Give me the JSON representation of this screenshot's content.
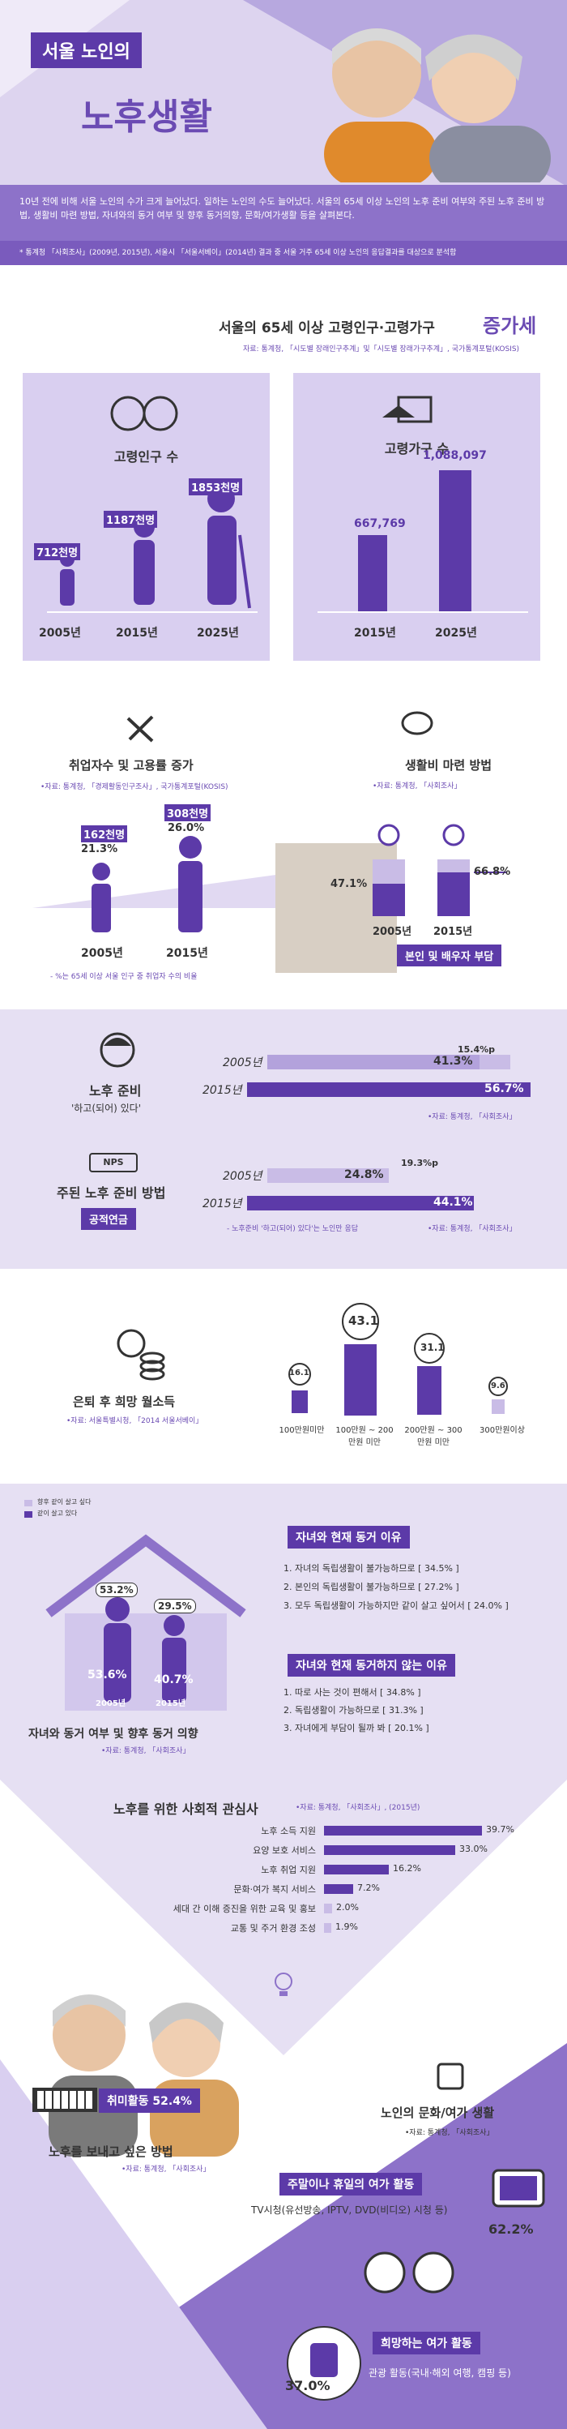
{
  "header": {
    "title_small": "서울 노인의",
    "title_big": "노후생활",
    "intro": "10년 전에 비해 서울 노인의 수가 크게 늘어났다. 일하는 노인의 수도 늘어났다. 서울의 65세 이상 노인의 노후 준비 여부와 주된 노후 준비 방법, 생활비 마련 방법, 자녀와의 동거 여부 및 향후 동거의향, 문화/여가생활 등을 살펴본다.",
    "note": "* 통계청 「사회조사」(2009년, 2015년), 서울시 「서울서베이」(2014년) 결과 중 서울 거주 65세 이상 노인의 응답결과를 대상으로 분석함"
  },
  "section1": {
    "title_main": "서울의 65세 이상 고령인구·고령가구",
    "title_emph": "증가세",
    "source": "자료: 통계청, 「시도별 장래인구추계」및「시도별 장래가구추계」, 국가통계포털(KOSIS)",
    "pop_title": "고령인구 수",
    "pop_values": [
      "712천명",
      "1187천명",
      "1853천명"
    ],
    "pop_years": [
      "2005년",
      "2015년",
      "2025년"
    ],
    "hh_title": "고령가구 수",
    "hh_values": [
      "667,769",
      "1,088,097"
    ],
    "hh_years": [
      "2015년",
      "2025년"
    ]
  },
  "section2": {
    "emp_title": "취업자수 및 고용률 증가",
    "emp_source": "•자료: 통계청, 「경제활동인구조사」, 국가통계포털(KOSIS)",
    "emp_values": [
      "162천명",
      "308천명"
    ],
    "emp_rates": [
      "21.3%",
      "26.0%"
    ],
    "emp_years": [
      "2005년",
      "2015년"
    ],
    "emp_note": "- %는 65세 이상 서울 인구 중 취업자 수의 비율",
    "living_title": "생활비 마련 방법",
    "living_source": "•자료: 통계청, 「사회조사」",
    "living_values": [
      "47.1%",
      "66.8%"
    ],
    "living_years": [
      "2005년",
      "2015년"
    ],
    "living_label": "본인 및 배우자 부담"
  },
  "section3": {
    "prep_title": "노후 준비",
    "prep_sub": "'하고(되어) 있다'",
    "prep_years": [
      "2005년",
      "2015년"
    ],
    "prep_values": [
      "41.3%",
      "56.7%"
    ],
    "prep_diff": "15.4%p",
    "prep_source": "•자료: 통계청, 「사회조사」",
    "method_title": "주된 노후 준비 방법",
    "method_badge": "공적연금",
    "method_logo": "NPS",
    "method_years": [
      "2005년",
      "2015년"
    ],
    "method_values": [
      "24.8%",
      "44.1%"
    ],
    "method_diff": "19.3%p",
    "method_note": "- 노후준비 '하고(되어) 있다'는 노인만 응답",
    "method_source": "•자료: 통계청, 「사회조사」"
  },
  "section4": {
    "title": "은퇴 후 희망 월소득",
    "source": "•자료: 서울특별시청, 「2014 서울서베이」",
    "values": [
      "16.1",
      "43.1",
      "31.1",
      "9.6"
    ],
    "labels": [
      "100만원미만",
      "100만원 ~ 200만원 미만",
      "200만원 ~ 300만원 미만",
      "300만원이상"
    ]
  },
  "section5": {
    "legend_future": "향후 같이 살고 싶다",
    "legend_current": "같이 살고 있다",
    "future_values": [
      "53.2%",
      "29.5%"
    ],
    "current_values": [
      "53.6%",
      "40.7%"
    ],
    "years": [
      "2005년",
      "2015년"
    ],
    "title": "자녀와 동거 여부 및 향후 동거 의향",
    "source": "•자료: 통계청, 「사회조사」",
    "reasons_title": "자녀와 현재 동거 이유",
    "reasons": [
      "1. 자녀의 독립생활이 불가능하므로 [ 34.5% ]",
      "2. 본인의 독립생활이 불가능하므로 [ 27.2% ]",
      "3. 모두 독립생활이 가능하지만 같이 살고 싶어서 [ 24.0% ]"
    ],
    "noreasons_title": "자녀와 현재 동거하지 않는 이유",
    "noreasons": [
      "1. 따로 사는 것이 편해서 [ 34.8% ]",
      "2. 독립생활이 가능하므로 [ 31.3% ]",
      "3. 자녀에게 부담이 될까 봐 [ 20.1% ]"
    ]
  },
  "section6": {
    "title": "노후를 위한 사회적 관심사",
    "source": "•자료: 통계청, 「사회조사」, (2015년)",
    "items": [
      {
        "label": "노후 소득 지원",
        "value": "39.7%",
        "pct": 39.7
      },
      {
        "label": "요양 보호 서비스",
        "value": "33.0%",
        "pct": 33.0
      },
      {
        "label": "노후 취업 지원",
        "value": "16.2%",
        "pct": 16.2
      },
      {
        "label": "문화·여가 복지 서비스",
        "value": "7.2%",
        "pct": 7.2
      },
      {
        "label": "세대 간 이해 증진을 위한 교육 및 홍보",
        "value": "2.0%",
        "pct": 2.0
      },
      {
        "label": "교통 및 주거 환경 조성",
        "value": "1.9%",
        "pct": 1.9
      }
    ]
  },
  "section7": {
    "hobby_label": "취미활동 52.4%",
    "wish_title": "노후를 보내고 싶은 방법",
    "wish_source": "•자료: 통계청, 「사회조사」",
    "culture_title": "노인의 문화/여가 생활",
    "culture_source": "•자료: 통계청, 「사회조사」",
    "weekend_title": "주말이나 휴일의 여가 활동",
    "weekend_desc": "TV시청(유선방송, IPTV, DVD(비디오) 시청 등)",
    "weekend_value": "62.2%",
    "hope_title": "희망하는 여가 활동",
    "hope_desc": "관광 활동(국내·해외 여행, 캠핑 등)",
    "hope_value": "37.0%"
  },
  "colors": {
    "primary": "#5c3aa8",
    "light": "#c9bce6",
    "band": "#e6e0f3"
  }
}
